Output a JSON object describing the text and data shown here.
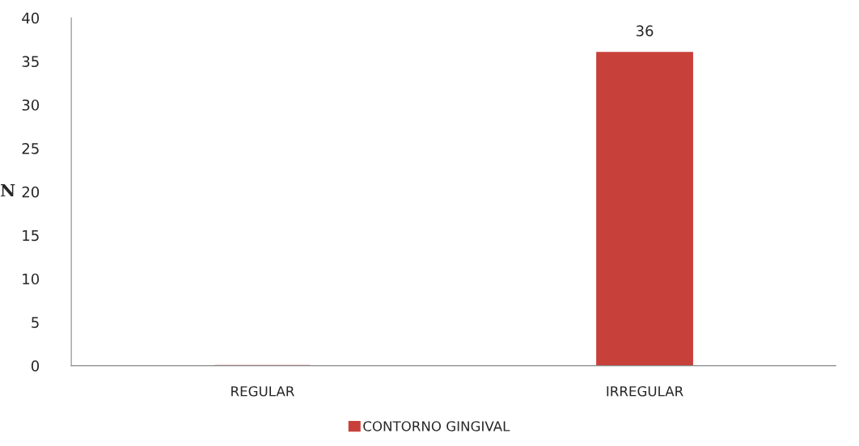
{
  "chart_data": {
    "type": "bar",
    "ylabel": "N",
    "categories": [
      "REGULAR",
      "IRREGULAR"
    ],
    "series": [
      {
        "name": "CONTORNO GINGIVAL",
        "color": "#c8403a",
        "values": [
          0,
          36
        ],
        "value_labels": [
          null,
          "36"
        ]
      }
    ],
    "ylim": [
      0,
      40
    ],
    "yticks": [
      0,
      5,
      10,
      15,
      20,
      25,
      30,
      35,
      40
    ],
    "grid": false,
    "legend": "bottom"
  }
}
